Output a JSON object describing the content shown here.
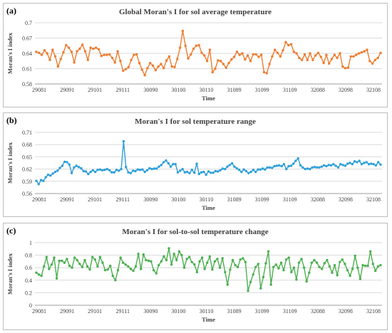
{
  "chart_data": [
    {
      "type": "line",
      "panel_label": "(a)",
      "title": "Global Moran's I for sol average temperature",
      "xlabel": "Time",
      "ylabel": "Moran's I index",
      "ylim": [
        0.58,
        0.7
      ],
      "yticks": [
        "0.58",
        "0.61",
        "0.64",
        "0.67",
        "0.7"
      ],
      "xticks": [
        "29081",
        "29091",
        "29101",
        "29111",
        "30090",
        "30100",
        "30110",
        "31089",
        "31099",
        "31109",
        "32088",
        "32098",
        "32108"
      ],
      "grid": "horizontal",
      "series": [
        {
          "color": "#ED7D31",
          "values": [
            0.643,
            0.641,
            0.637,
            0.646,
            0.64,
            0.627,
            0.647,
            0.634,
            0.614,
            0.629,
            0.642,
            0.656,
            0.651,
            0.643,
            0.622,
            0.644,
            0.649,
            0.657,
            0.644,
            0.627,
            0.651,
            0.649,
            0.651,
            0.648,
            0.635,
            0.637,
            0.637,
            0.638,
            0.631,
            0.622,
            0.644,
            0.625,
            0.606,
            0.609,
            0.613,
            0.627,
            0.637,
            0.638,
            0.621,
            0.608,
            0.597,
            0.611,
            0.621,
            0.616,
            0.607,
            0.614,
            0.619,
            0.611,
            0.626,
            0.634,
            0.614,
            0.613,
            0.629,
            0.651,
            0.684,
            0.655,
            0.63,
            0.638,
            0.649,
            0.655,
            0.656,
            0.641,
            0.636,
            0.625,
            0.647,
            0.603,
            0.61,
            0.626,
            0.625,
            0.619,
            0.612,
            0.621,
            0.628,
            0.633,
            0.643,
            0.637,
            0.64,
            0.628,
            0.636,
            0.625,
            0.638,
            0.638,
            0.633,
            0.637,
            0.603,
            0.601,
            0.619,
            0.634,
            0.647,
            0.641,
            0.634,
            0.646,
            0.662,
            0.656,
            0.658,
            0.643,
            0.64,
            0.631,
            0.627,
            0.638,
            0.627,
            0.64,
            0.627,
            0.636,
            0.641,
            0.633,
            0.621,
            0.637,
            0.62,
            0.629,
            0.637,
            0.631,
            0.64,
            0.614,
            0.611,
            0.612,
            0.634,
            0.634,
            0.637,
            0.64,
            0.642,
            0.644,
            0.647,
            0.625,
            0.62,
            0.627,
            0.631,
            0.641
          ]
        }
      ]
    },
    {
      "type": "line",
      "panel_label": "(b)",
      "title": "Moran's I for sol temperature range",
      "xlabel": "Time",
      "ylabel": "Moran's I index",
      "ylim": [
        0.56,
        0.71
      ],
      "yticks": [
        "0.56",
        "0.59",
        "0.62",
        "0.65",
        "0.68",
        "0.71"
      ],
      "xticks": [
        "29081",
        "29091",
        "29101",
        "29111",
        "30090",
        "30100",
        "30110",
        "31089",
        "31099",
        "31109",
        "32088",
        "32098",
        "32108"
      ],
      "grid": "horizontal",
      "series": [
        {
          "color": "#2E9FD8",
          "values": [
            0.591,
            0.583,
            0.593,
            0.591,
            0.6,
            0.606,
            0.604,
            0.609,
            0.613,
            0.616,
            0.623,
            0.628,
            0.638,
            0.637,
            0.631,
            0.61,
            0.624,
            0.628,
            0.625,
            0.622,
            0.615,
            0.614,
            0.608,
            0.613,
            0.617,
            0.613,
            0.618,
            0.619,
            0.617,
            0.618,
            0.62,
            0.617,
            0.612,
            0.612,
            0.618,
            0.616,
            0.62,
            0.688,
            0.625,
            0.612,
            0.61,
            0.616,
            0.615,
            0.619,
            0.618,
            0.619,
            0.613,
            0.617,
            0.622,
            0.62,
            0.621,
            0.621,
            0.626,
            0.63,
            0.637,
            0.641,
            0.634,
            0.626,
            0.632,
            0.632,
            0.612,
            0.616,
            0.62,
            0.612,
            0.613,
            0.61,
            0.618,
            0.611,
            0.633,
            0.608,
            0.612,
            0.613,
            0.606,
            0.614,
            0.611,
            0.611,
            0.615,
            0.614,
            0.617,
            0.621,
            0.62,
            0.626,
            0.63,
            0.634,
            0.626,
            0.622,
            0.618,
            0.613,
            0.619,
            0.615,
            0.61,
            0.613,
            0.618,
            0.613,
            0.619,
            0.619,
            0.621,
            0.619,
            0.624,
            0.624,
            0.623,
            0.627,
            0.628,
            0.629,
            0.627,
            0.632,
            0.62,
            0.627,
            0.628,
            0.633,
            0.64,
            0.646,
            0.629,
            0.624,
            0.62,
            0.621,
            0.62,
            0.624,
            0.625,
            0.624,
            0.624,
            0.626,
            0.629,
            0.627,
            0.63,
            0.629,
            0.632,
            0.628,
            0.624,
            0.632,
            0.63,
            0.628,
            0.633,
            0.635,
            0.632,
            0.639,
            0.637,
            0.64,
            0.632,
            0.635,
            0.637,
            0.632,
            0.633,
            0.632,
            0.629,
            0.637,
            0.631
          ]
        }
      ]
    },
    {
      "type": "line",
      "panel_label": "(c)",
      "title": "Moran's I for sol-to-sol temperature change",
      "xlabel": "Time",
      "ylabel": "Moran's I index",
      "ylim": [
        0,
        1
      ],
      "yticks": [
        "0",
        "0.2",
        "0.4",
        "0.6",
        "0.8",
        "1"
      ],
      "xticks": [
        "29081",
        "29091",
        "29101",
        "29111",
        "30090",
        "30100",
        "30110",
        "31089",
        "31099",
        "31109",
        "32088",
        "32098",
        "32108"
      ],
      "grid": "horizontal",
      "series": [
        {
          "color": "#4CAF50",
          "values": [
            0.52,
            0.49,
            0.47,
            0.62,
            0.77,
            0.58,
            0.65,
            0.76,
            0.43,
            0.71,
            0.71,
            0.68,
            0.74,
            0.63,
            0.6,
            0.76,
            0.72,
            0.66,
            0.61,
            0.72,
            0.62,
            0.57,
            0.77,
            0.73,
            0.62,
            0.77,
            0.68,
            0.56,
            0.57,
            0.63,
            0.47,
            0.4,
            0.56,
            0.76,
            0.68,
            0.65,
            0.62,
            0.58,
            0.55,
            0.62,
            0.82,
            0.58,
            0.81,
            0.72,
            0.71,
            0.7,
            0.56,
            0.51,
            0.64,
            0.7,
            0.78,
            0.72,
            0.91,
            0.65,
            0.82,
            0.72,
            0.86,
            0.8,
            0.6,
            0.74,
            0.77,
            0.69,
            0.65,
            0.53,
            0.7,
            0.76,
            0.58,
            0.68,
            0.78,
            0.57,
            0.7,
            0.74,
            0.6,
            0.75,
            0.53,
            0.33,
            0.57,
            0.72,
            0.64,
            0.61,
            0.73,
            0.75,
            0.69,
            0.23,
            0.37,
            0.49,
            0.61,
            0.66,
            0.27,
            0.45,
            0.67,
            0.86,
            0.33,
            0.61,
            0.65,
            0.59,
            0.68,
            0.56,
            0.73,
            0.76,
            0.53,
            0.6,
            0.41,
            0.68,
            0.74,
            0.6,
            0.38,
            0.52,
            0.68,
            0.72,
            0.68,
            0.61,
            0.58,
            0.67,
            0.72,
            0.62,
            0.52,
            0.64,
            0.48,
            0.69,
            0.73,
            0.66,
            0.56,
            0.47,
            0.58,
            0.79,
            0.6,
            0.42,
            0.64,
            0.63,
            0.63,
            0.86,
            0.66,
            0.55,
            0.62,
            0.64
          ]
        }
      ]
    }
  ]
}
